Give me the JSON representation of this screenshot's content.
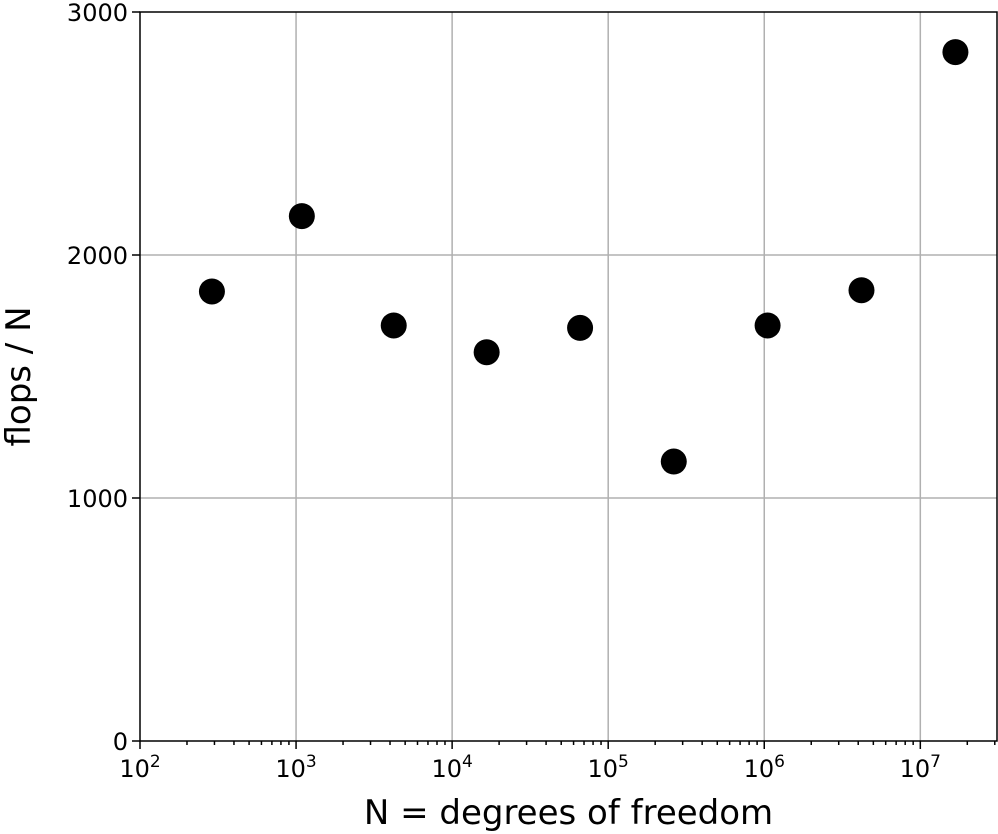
{
  "chart_data": {
    "type": "scatter",
    "title": "",
    "xlabel": "N = degrees of freedom",
    "ylabel": "flops / N",
    "x_scale": "log",
    "xlim": [
      100,
      31000000
    ],
    "ylim": [
      0,
      3000
    ],
    "grid": true,
    "marker_color": "#000000",
    "x_ticks": [
      {
        "value": 100,
        "base": "10",
        "exp": "2"
      },
      {
        "value": 1000,
        "base": "10",
        "exp": "3"
      },
      {
        "value": 10000,
        "base": "10",
        "exp": "4"
      },
      {
        "value": 100000,
        "base": "10",
        "exp": "5"
      },
      {
        "value": 1000000,
        "base": "10",
        "exp": "6"
      },
      {
        "value": 10000000,
        "base": "10",
        "exp": "7"
      }
    ],
    "y_ticks": [
      {
        "value": 0,
        "label": "0"
      },
      {
        "value": 1000,
        "label": "1000"
      },
      {
        "value": 2000,
        "label": "2000"
      },
      {
        "value": 3000,
        "label": "3000"
      }
    ],
    "points": [
      {
        "x": 289,
        "y": 1850
      },
      {
        "x": 1089,
        "y": 2160
      },
      {
        "x": 4225,
        "y": 1710
      },
      {
        "x": 16641,
        "y": 1600
      },
      {
        "x": 66049,
        "y": 1700
      },
      {
        "x": 263169,
        "y": 1150
      },
      {
        "x": 1050625,
        "y": 1710
      },
      {
        "x": 4198401,
        "y": 1855
      },
      {
        "x": 16785409,
        "y": 2835
      }
    ]
  }
}
